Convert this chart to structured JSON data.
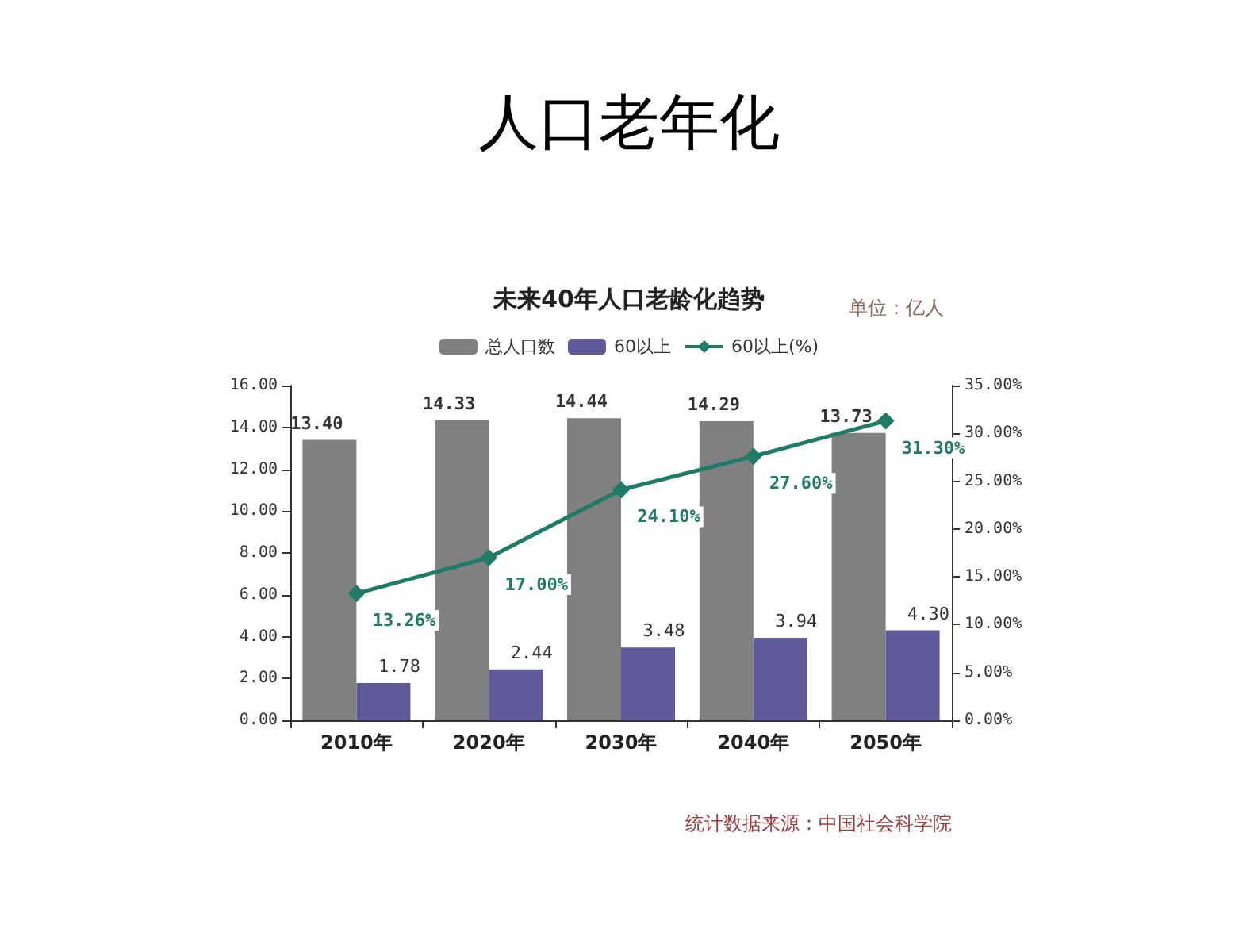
{
  "chart_data": {
    "type": "bar",
    "title": "人口老年化",
    "subtitle": "未来40年人口老龄化趋势",
    "categories": [
      "2010年",
      "2020年",
      "2030年",
      "2040年",
      "2050年"
    ],
    "series": [
      {
        "name": "总人口数",
        "color": "#808080",
        "values": [
          13.4,
          14.33,
          14.44,
          14.29,
          13.73
        ],
        "value_labels": [
          "13.40",
          "14.33",
          "14.44",
          "14.29",
          "13.73"
        ]
      },
      {
        "name": "60以上",
        "color": "#5f5b9a",
        "values": [
          1.78,
          2.44,
          3.48,
          3.94,
          4.3
        ],
        "value_labels": [
          "1.78",
          "2.44",
          "3.48",
          "3.94",
          "4.30"
        ]
      },
      {
        "name": "60以上(%)",
        "type": "line",
        "axis": "y2",
        "color": "#1f7a66",
        "marker": "diamond",
        "values": [
          13.26,
          17.0,
          24.1,
          27.6,
          31.3
        ],
        "value_labels": [
          "13.26%",
          "17.00%",
          "24.10%",
          "27.60%",
          "31.30%"
        ]
      }
    ],
    "ylim": [
      0,
      16
    ],
    "yticks": [
      {
        "value": 0,
        "label": "0.00"
      },
      {
        "value": 2,
        "label": "2.00"
      },
      {
        "value": 4,
        "label": "4.00"
      },
      {
        "value": 6,
        "label": "6.00"
      },
      {
        "value": 8,
        "label": "8.00"
      },
      {
        "value": 10,
        "label": "10.00"
      },
      {
        "value": 12,
        "label": "12.00"
      },
      {
        "value": 14,
        "label": "14.00"
      },
      {
        "value": 16,
        "label": "16.00"
      }
    ],
    "y2lim": [
      0,
      35
    ],
    "y2ticks": [
      {
        "value": 0,
        "label": "0.00%"
      },
      {
        "value": 5,
        "label": "5.00%"
      },
      {
        "value": 10,
        "label": "10.00%"
      },
      {
        "value": 15,
        "label": "15.00%"
      },
      {
        "value": 20,
        "label": "20.00%"
      },
      {
        "value": 25,
        "label": "25.00%"
      },
      {
        "value": 30,
        "label": "30.00%"
      },
      {
        "value": 35,
        "label": "35.00%"
      }
    ],
    "annotations": [
      "单位：亿人",
      "统计数据来源：中国社会科学院"
    ],
    "legend": "top",
    "grid": false
  }
}
